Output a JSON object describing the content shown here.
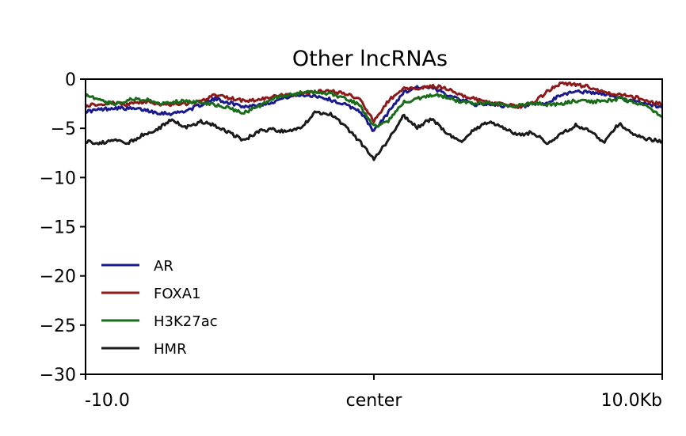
{
  "chart_data": {
    "type": "line",
    "title": "Other lncRNAs",
    "xlabel": "",
    "ylabel": "",
    "xlim": [
      -10,
      10
    ],
    "ylim": [
      -30,
      0
    ],
    "x_ticks": [
      {
        "value": -10,
        "label": "-10.0"
      },
      {
        "value": 0,
        "label": "center"
      },
      {
        "value": 10,
        "label": "10.0Kb"
      }
    ],
    "y_ticks": [
      {
        "value": 0,
        "label": "0"
      },
      {
        "value": -5,
        "label": "−5"
      },
      {
        "value": -10,
        "label": "−10"
      },
      {
        "value": -15,
        "label": "−15"
      },
      {
        "value": -20,
        "label": "−20"
      },
      {
        "value": -25,
        "label": "−25"
      },
      {
        "value": -30,
        "label": "−30"
      }
    ],
    "grid": false,
    "legend_position": "lower-left",
    "x": [
      -10,
      -9.5,
      -9,
      -8.5,
      -8,
      -7.5,
      -7,
      -6.5,
      -6,
      -5.5,
      -5,
      -4.5,
      -4,
      -3.5,
      -3,
      -2.5,
      -2,
      -1.5,
      -1,
      -0.5,
      0,
      0.5,
      1,
      1.5,
      2,
      2.5,
      3,
      3.5,
      4,
      4.5,
      5,
      5.5,
      6,
      6.5,
      7,
      7.5,
      8,
      8.5,
      9,
      9.5,
      10
    ],
    "series": [
      {
        "name": "AR",
        "color": "#1a1a8c",
        "values": [
          -3.3,
          -3.1,
          -2.9,
          -3.0,
          -3.1,
          -3.4,
          -3.5,
          -3.2,
          -2.6,
          -2.0,
          -2.4,
          -2.8,
          -2.6,
          -2.3,
          -1.8,
          -1.6,
          -1.7,
          -2.1,
          -2.6,
          -3.2,
          -5.3,
          -3.4,
          -1.4,
          -0.8,
          -0.9,
          -1.5,
          -2.0,
          -2.6,
          -2.5,
          -2.7,
          -2.9,
          -2.6,
          -2.5,
          -1.6,
          -1.2,
          -1.4,
          -1.5,
          -1.9,
          -2.3,
          -2.5,
          -2.9
        ]
      },
      {
        "name": "FOXA1",
        "color": "#8c1a1a",
        "values": [
          -2.7,
          -2.5,
          -2.4,
          -2.6,
          -2.3,
          -2.5,
          -2.6,
          -2.5,
          -2.3,
          -1.6,
          -1.9,
          -2.2,
          -2.1,
          -1.8,
          -1.6,
          -1.5,
          -1.3,
          -1.2,
          -1.5,
          -2.0,
          -4.3,
          -2.2,
          -1.0,
          -0.9,
          -0.7,
          -0.9,
          -1.6,
          -2.0,
          -2.4,
          -2.6,
          -2.8,
          -2.5,
          -1.3,
          -0.4,
          -0.6,
          -0.8,
          -1.4,
          -1.6,
          -1.8,
          -2.2,
          -2.6
        ]
      },
      {
        "name": "H3K27ac",
        "color": "#1a6b1a",
        "values": [
          -1.6,
          -2.2,
          -2.6,
          -2.1,
          -2.0,
          -2.5,
          -2.3,
          -2.2,
          -2.4,
          -2.6,
          -3.0,
          -3.4,
          -2.8,
          -2.0,
          -1.6,
          -1.4,
          -1.3,
          -1.5,
          -1.9,
          -2.6,
          -4.8,
          -4.3,
          -2.4,
          -2.0,
          -1.6,
          -1.8,
          -2.3,
          -2.5,
          -2.4,
          -2.6,
          -2.7,
          -2.4,
          -2.6,
          -2.5,
          -2.2,
          -2.3,
          -2.2,
          -2.0,
          -2.3,
          -2.8,
          -3.8
        ]
      },
      {
        "name": "HMR",
        "color": "#1a1a1a",
        "values": [
          -6.3,
          -6.5,
          -6.2,
          -6.5,
          -5.6,
          -5.1,
          -4.1,
          -4.9,
          -4.3,
          -4.7,
          -5.5,
          -6.2,
          -5.3,
          -5.1,
          -5.4,
          -4.9,
          -3.3,
          -3.6,
          -4.8,
          -6.3,
          -8.2,
          -6.2,
          -3.7,
          -4.9,
          -4.0,
          -5.4,
          -6.4,
          -5.1,
          -4.3,
          -4.9,
          -5.7,
          -5.4,
          -6.5,
          -5.6,
          -4.7,
          -5.3,
          -6.4,
          -4.5,
          -5.6,
          -6.1,
          -6.3
        ]
      }
    ]
  }
}
